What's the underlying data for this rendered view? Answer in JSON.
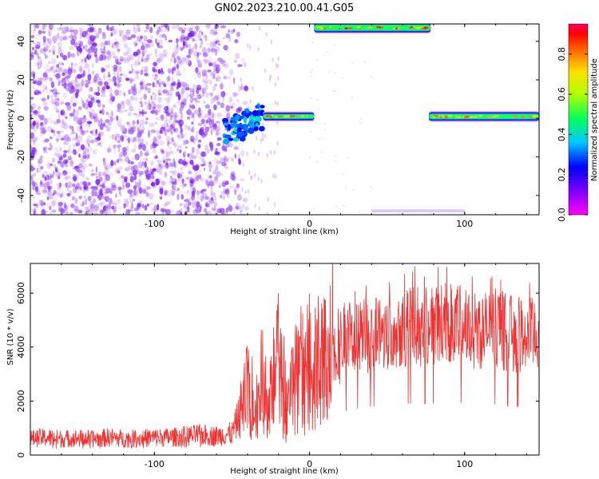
{
  "figure": {
    "title": "GN02.2023.210.00.41.G05"
  },
  "chart_data": [
    {
      "type": "heatmap",
      "title": "GN02.2023.210.00.41.G05",
      "xlabel": "Height of straight line (km)",
      "ylabel": "Frequency (Hz)",
      "xlim": [
        -180,
        148
      ],
      "ylim": [
        -50,
        49
      ],
      "xticks": [
        -100,
        0,
        100
      ],
      "xtick_labels": [
        "-100",
        "0",
        "100"
      ],
      "yticks": [
        -40,
        -20,
        0,
        20,
        40
      ],
      "ytick_labels": [
        "-40",
        "-20",
        "0",
        "20",
        "40"
      ],
      "colorbar": {
        "label": "Normalized spectral amplitude",
        "range": [
          0,
          0.95
        ],
        "ticks": [
          0,
          0.2,
          0.4,
          0.6,
          0.8
        ],
        "tick_labels": [
          "0.0",
          "0.2",
          "0.4",
          "0.6",
          "0.8"
        ],
        "colormap": [
          "#ff00ff",
          "#8000ff",
          "#0000ff",
          "#00ffff",
          "#00ff00",
          "#ffff00",
          "#ff8000",
          "#ff0000",
          "#ff0080"
        ]
      },
      "features": [
        {
          "name": "noise",
          "x_range": [
            -180,
            -45
          ],
          "freq_range": [
            -50,
            49
          ],
          "amplitude": 0.15
        },
        {
          "name": "dispersed-onset",
          "x_range": [
            -55,
            -30
          ],
          "freq_range": [
            -10,
            7
          ],
          "amplitude": 0.3
        },
        {
          "name": "ridge-1",
          "x_range": [
            -30,
            3
          ],
          "freq": 1,
          "amplitude": 0.6
        },
        {
          "name": "band-high",
          "x_range": [
            3,
            78
          ],
          "freq": 47,
          "amplitude": 0.8
        },
        {
          "name": "band-low",
          "x_range": [
            77,
            148
          ],
          "freq": 1,
          "amplitude": 0.55
        },
        {
          "name": "bottom-edge",
          "x_range": [
            40,
            100
          ],
          "freq": -48,
          "amplitude": 0.1
        }
      ],
      "grid": false
    },
    {
      "type": "line",
      "xlabel": "Height of straight line (km)",
      "ylabel": "SNR (10 * v/v)",
      "xlim": [
        -180,
        148
      ],
      "ylim": [
        0,
        7100
      ],
      "xticks": [
        -100,
        0,
        100
      ],
      "xtick_labels": [
        "-100",
        "0",
        "100"
      ],
      "yticks": [
        0,
        2000,
        4000,
        6000
      ],
      "ytick_labels": [
        "0",
        "2000",
        "4000",
        "6000"
      ],
      "line_color": "#ee3333",
      "series": [
        {
          "x": [
            -180,
            -170,
            -160,
            -150,
            -140,
            -130,
            -120,
            -110,
            -100,
            -90,
            -80,
            -70,
            -60,
            -50,
            -45,
            -40,
            -35,
            -30,
            -25,
            -20,
            -15,
            -10,
            -5,
            0,
            5,
            10,
            15,
            20,
            25,
            30,
            40,
            50,
            60,
            70,
            80,
            90,
            100,
            110,
            120,
            130,
            140,
            148
          ],
          "values": [
            600,
            650,
            600,
            620,
            600,
            650,
            600,
            620,
            650,
            650,
            700,
            750,
            700,
            800,
            1500,
            2500,
            1500,
            3000,
            1800,
            3500,
            1500,
            3000,
            2500,
            3000,
            3200,
            3500,
            4000,
            3800,
            4200,
            4300,
            4500,
            4600,
            4800,
            4700,
            4800,
            4900,
            4800,
            4600,
            4700,
            4500,
            4400,
            4500
          ]
        }
      ],
      "grid": false
    }
  ]
}
